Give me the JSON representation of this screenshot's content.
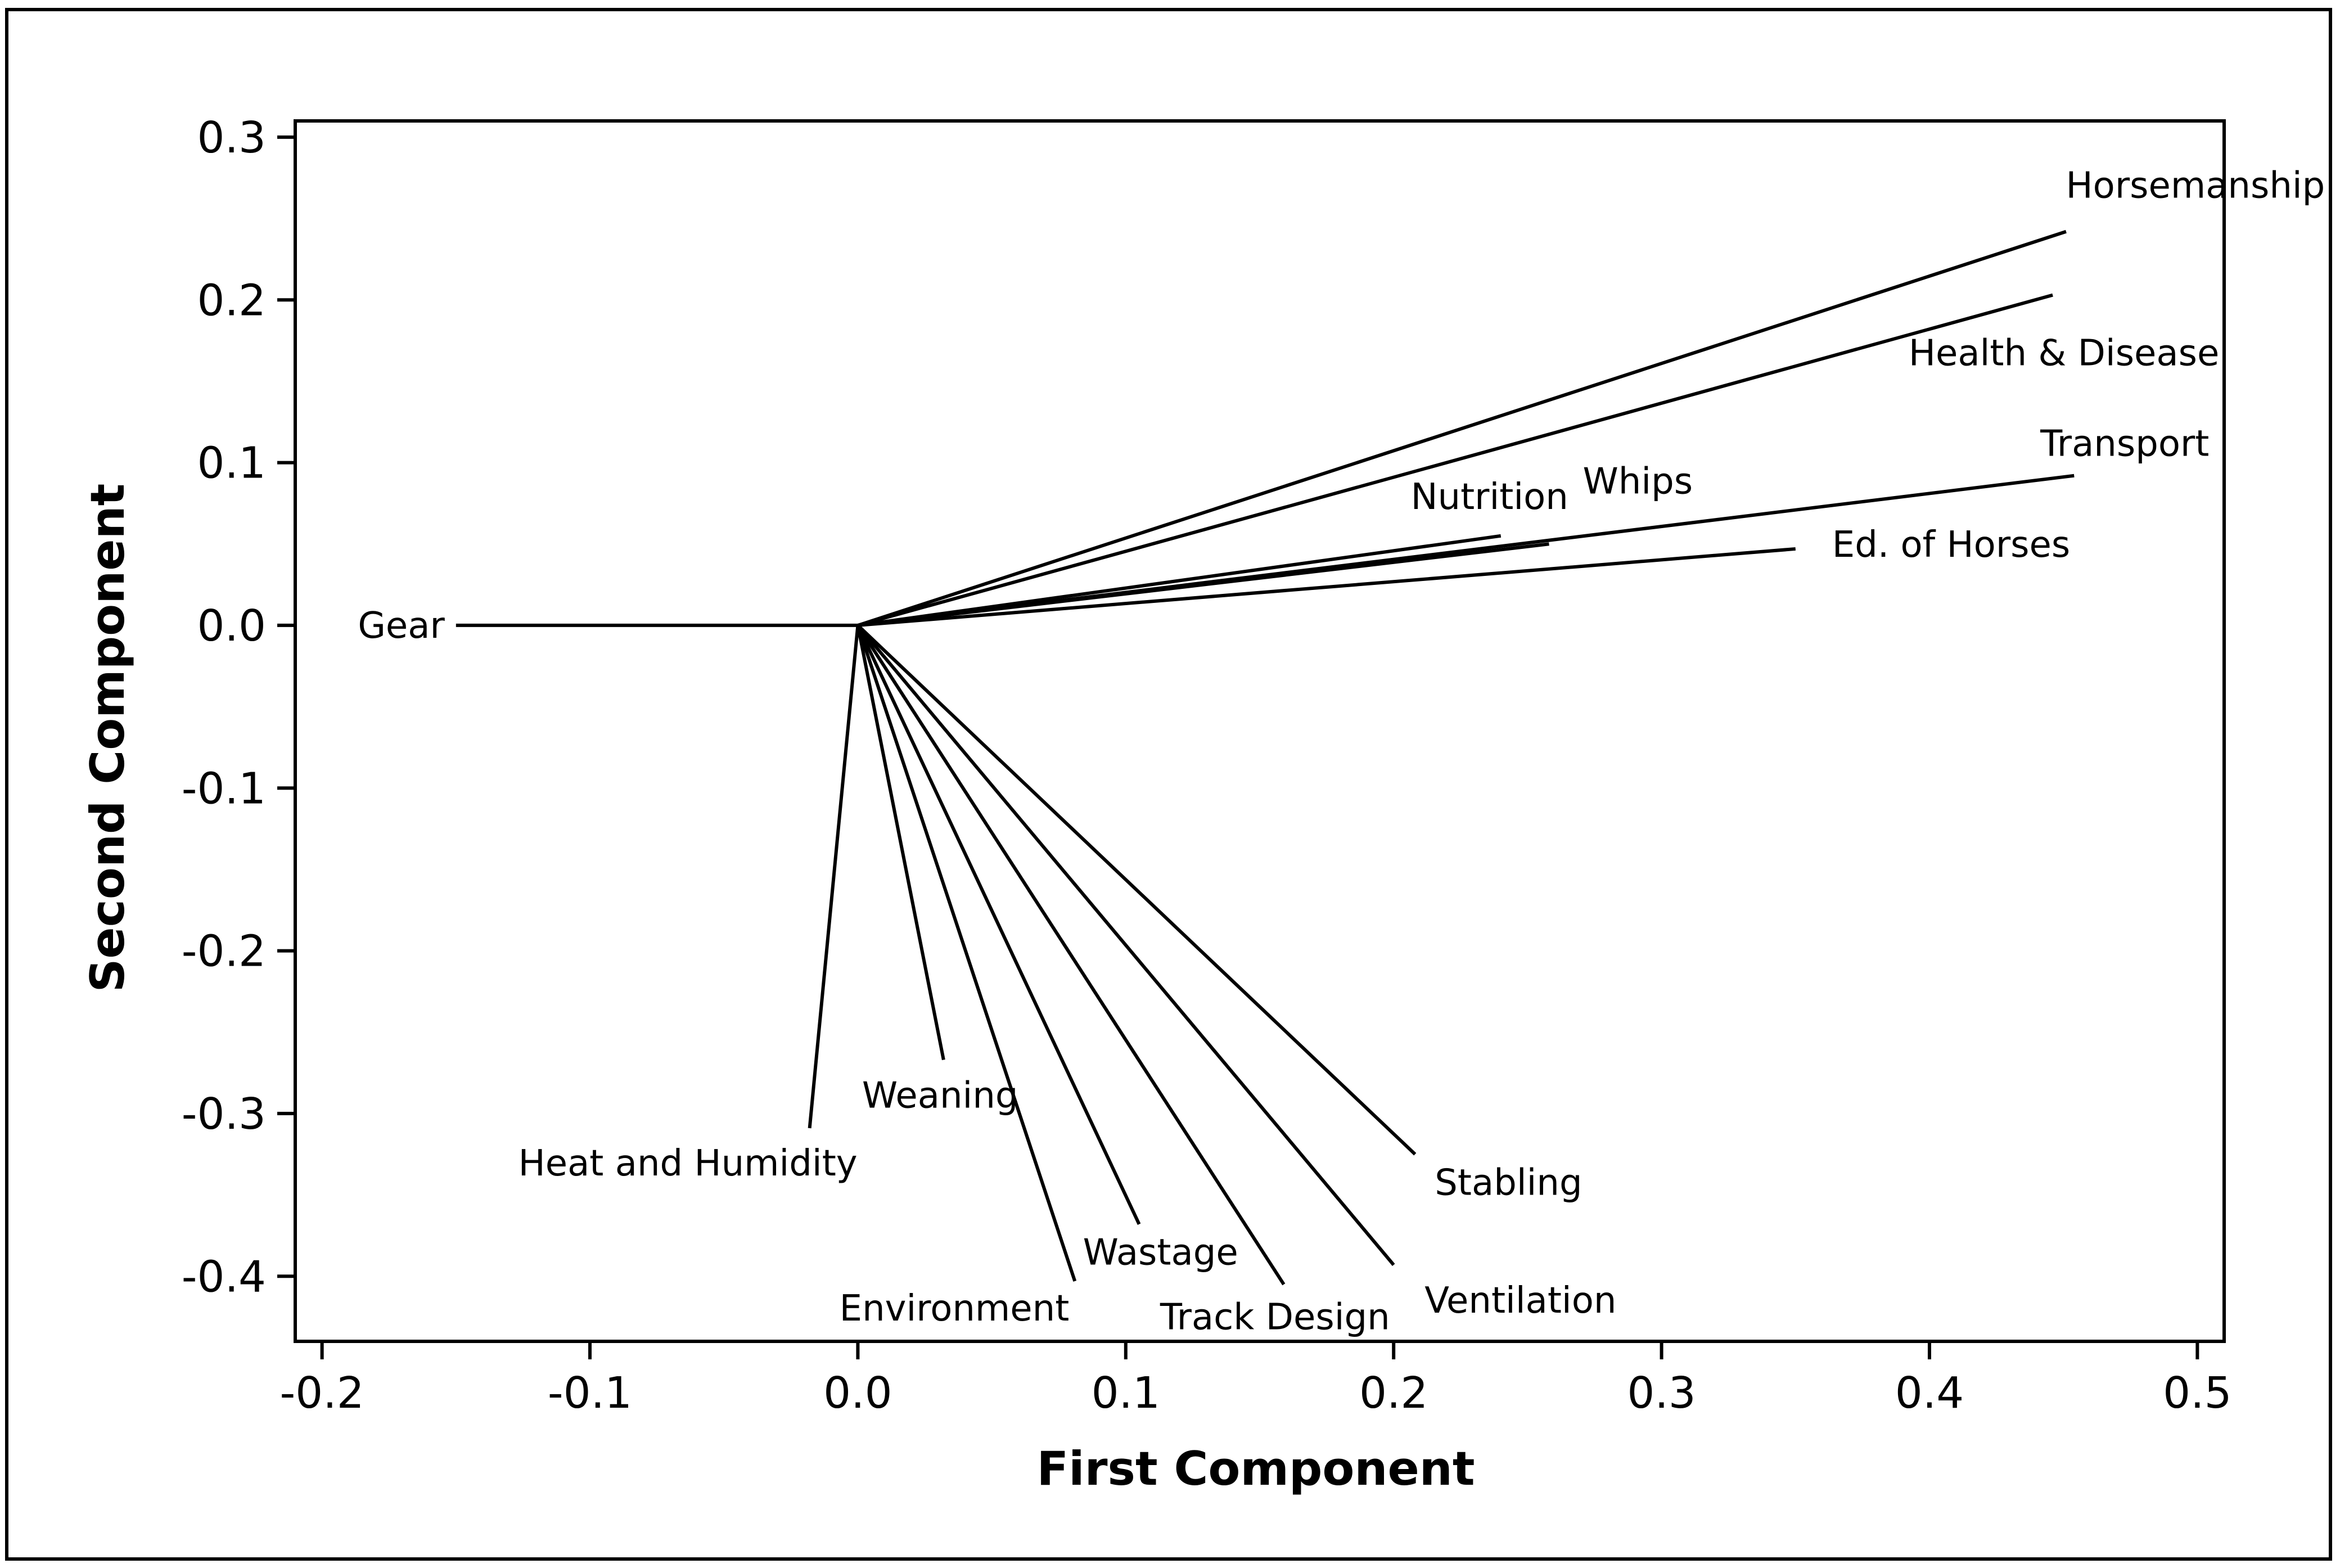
{
  "chart_data": {
    "type": "line",
    "subtype": "loading-plot",
    "title": "",
    "xlabel": "First Component",
    "ylabel": "Second Component",
    "xlim": [
      -0.21,
      0.51
    ],
    "ylim": [
      -0.44,
      0.31
    ],
    "grid": false,
    "origin": [
      0.0,
      0.0
    ],
    "x_ticks": [
      -0.2,
      -0.1,
      0.0,
      0.1,
      0.2,
      0.3,
      0.4,
      0.5
    ],
    "x_tick_labels": [
      "-0.2",
      "-0.1",
      "0.0",
      "0.1",
      "0.2",
      "0.3",
      "0.4",
      "0.5"
    ],
    "y_ticks": [
      0.3,
      0.2,
      0.1,
      0.0,
      -0.1,
      -0.2,
      -0.3,
      -0.4
    ],
    "y_tick_labels": [
      "0.3",
      "0.2",
      "0.1",
      "0.0",
      "-0.1",
      "-0.2",
      "-0.3",
      "-0.4"
    ],
    "loadings": [
      {
        "name": "Horsemanship",
        "x": 0.451,
        "y": 0.242,
        "label_anchor": "above"
      },
      {
        "name": "Health & Disease",
        "x": 0.446,
        "y": 0.203,
        "label_anchor": "below"
      },
      {
        "name": "Transport",
        "x": 0.454,
        "y": 0.092,
        "label_anchor": "above"
      },
      {
        "name": "Whips",
        "x": 0.258,
        "y": 0.05,
        "label_anchor": "above-right"
      },
      {
        "name": "Nutrition",
        "x": 0.24,
        "y": 0.055,
        "label_anchor": "above"
      },
      {
        "name": "Ed. of Horses",
        "x": 0.35,
        "y": 0.047,
        "label_anchor": "right"
      },
      {
        "name": "Gear",
        "x": -0.15,
        "y": 0.0,
        "label_anchor": "left"
      },
      {
        "name": "Heat and Humidity",
        "x": -0.018,
        "y": -0.309,
        "label_anchor": "below"
      },
      {
        "name": "Weaning",
        "x": 0.032,
        "y": -0.267,
        "label_anchor": "below"
      },
      {
        "name": "Environment",
        "x": 0.081,
        "y": -0.403,
        "label_anchor": "below"
      },
      {
        "name": "Wastage",
        "x": 0.105,
        "y": -0.368,
        "label_anchor": "below"
      },
      {
        "name": "Track Design",
        "x": 0.159,
        "y": -0.405,
        "label_anchor": "below"
      },
      {
        "name": "Ventilation",
        "x": 0.2,
        "y": -0.393,
        "label_anchor": "below-right"
      },
      {
        "name": "Stabling",
        "x": 0.208,
        "y": -0.325,
        "label_anchor": "below-right"
      }
    ]
  }
}
